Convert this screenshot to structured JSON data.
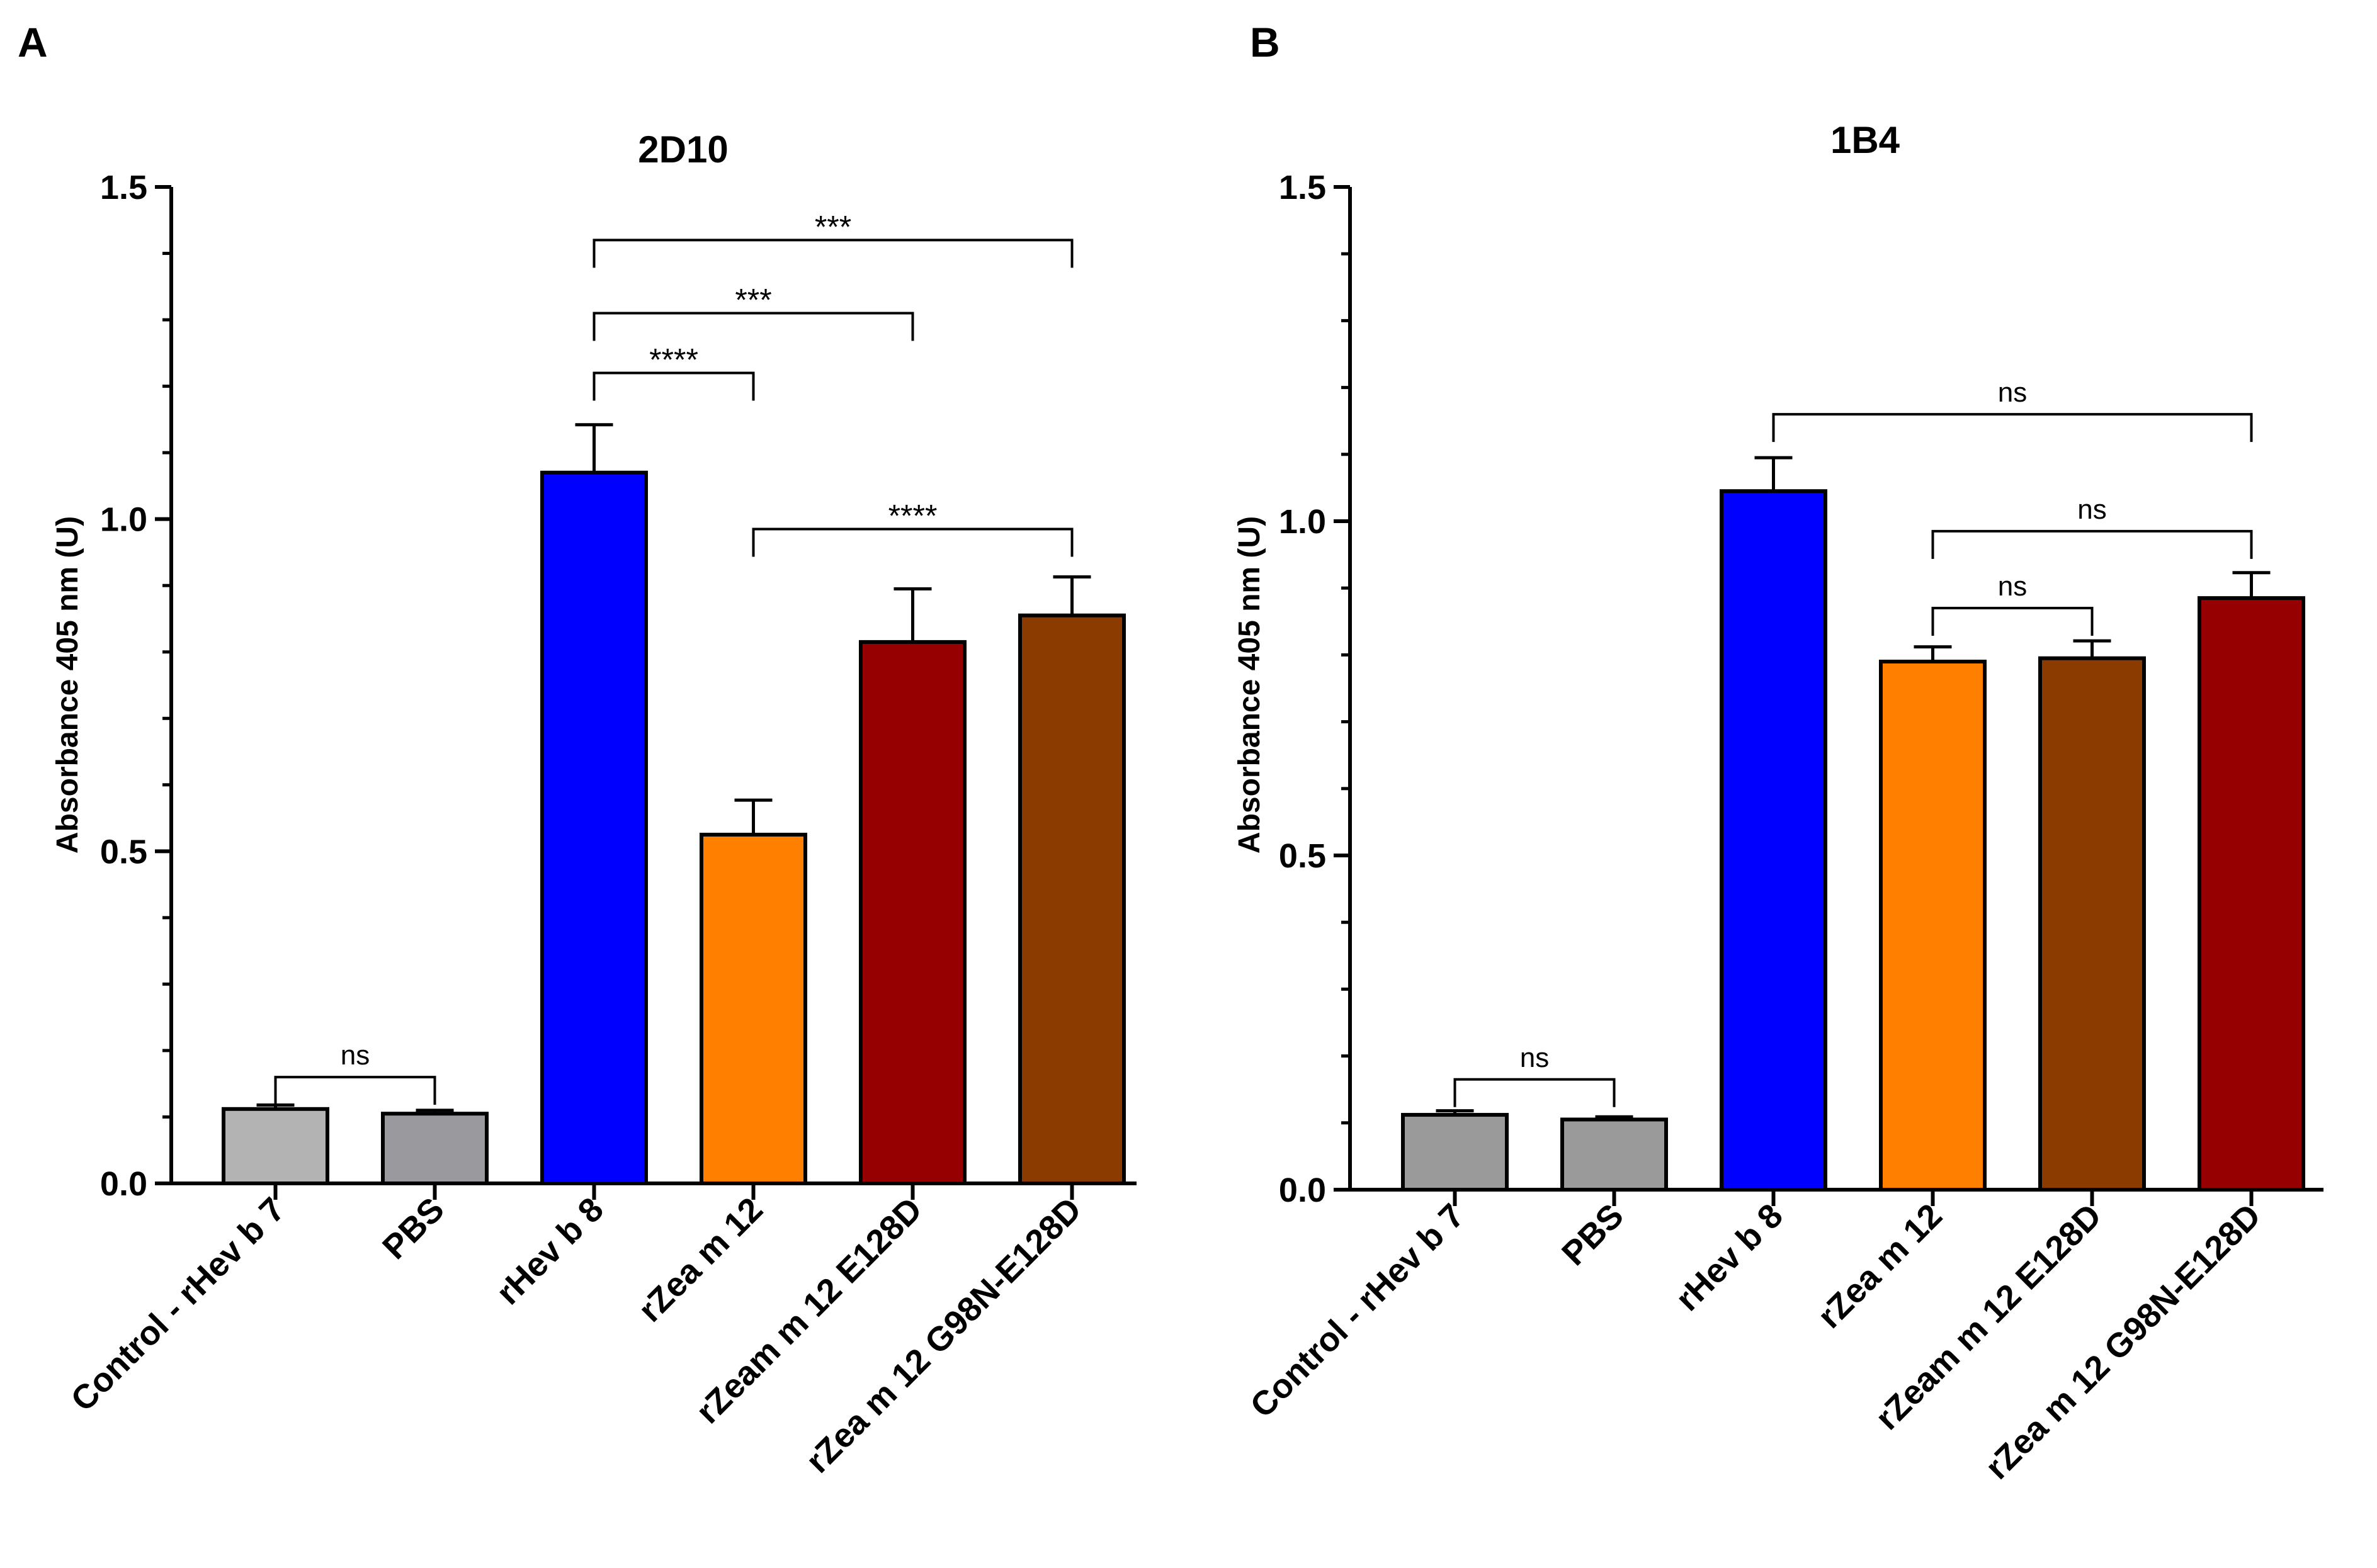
{
  "chart_data": [
    {
      "panel_label": "A",
      "type": "bar",
      "title": "2D10",
      "ylabel": "Absorbance 405 nm (U)",
      "xlabel": "",
      "ylim": [
        0,
        1.5
      ],
      "yticks": [
        "0.0",
        "0.5",
        "1.0",
        "1.5"
      ],
      "categories": [
        "Control - rHev b 7",
        "PBS",
        "rHev b 8",
        "rZea m 12",
        "rZeam m 12 E128D",
        "rZea m 12 G98N-E128D"
      ],
      "values": [
        0.112,
        0.105,
        1.07,
        0.525,
        0.815,
        0.855
      ],
      "errors": [
        0.006,
        0.005,
        0.072,
        0.052,
        0.08,
        0.058
      ],
      "colors": [
        "#b3b3b3",
        "#9a9a9e",
        "#0000ff",
        "#ff8000",
        "#960000",
        "#8b3a00"
      ],
      "significance": [
        {
          "from": 0,
          "to": 1,
          "label": "ns",
          "level": 0.16
        },
        {
          "from": 2,
          "to": 3,
          "label": "****",
          "level": 1.22
        },
        {
          "from": 2,
          "to": 4,
          "label": "***",
          "level": 1.31
        },
        {
          "from": 2,
          "to": 5,
          "label": "***",
          "level": 1.42
        },
        {
          "from": 3,
          "to": 5,
          "label": "****",
          "level": 0.985
        }
      ]
    },
    {
      "panel_label": "B",
      "type": "bar",
      "title": "1B4",
      "ylabel": "Absorbance 405 nm (U)",
      "xlabel": "",
      "ylim": [
        0,
        1.5
      ],
      "yticks": [
        "0.0",
        "0.5",
        "1.0",
        "1.5"
      ],
      "categories": [
        "Control - rHev b 7",
        "PBS",
        "rHev b 8",
        "rZea m 12",
        "rZeam m 12 E128D",
        "rZea m 12 G98N-E128D"
      ],
      "values": [
        0.112,
        0.105,
        1.045,
        0.79,
        0.795,
        0.885
      ],
      "errors": [
        0.006,
        0.004,
        0.05,
        0.022,
        0.026,
        0.038
      ],
      "colors": [
        "#9a9a9a",
        "#9a9a9a",
        "#0000ff",
        "#ff8000",
        "#8b3a00",
        "#960000"
      ],
      "significance": [
        {
          "from": 0,
          "to": 1,
          "label": "ns",
          "level": 0.165
        },
        {
          "from": 3,
          "to": 4,
          "label": "ns",
          "level": 0.87
        },
        {
          "from": 3,
          "to": 5,
          "label": "ns",
          "level": 0.985
        },
        {
          "from": 2,
          "to": 5,
          "label": "ns",
          "level": 1.16
        }
      ]
    }
  ]
}
